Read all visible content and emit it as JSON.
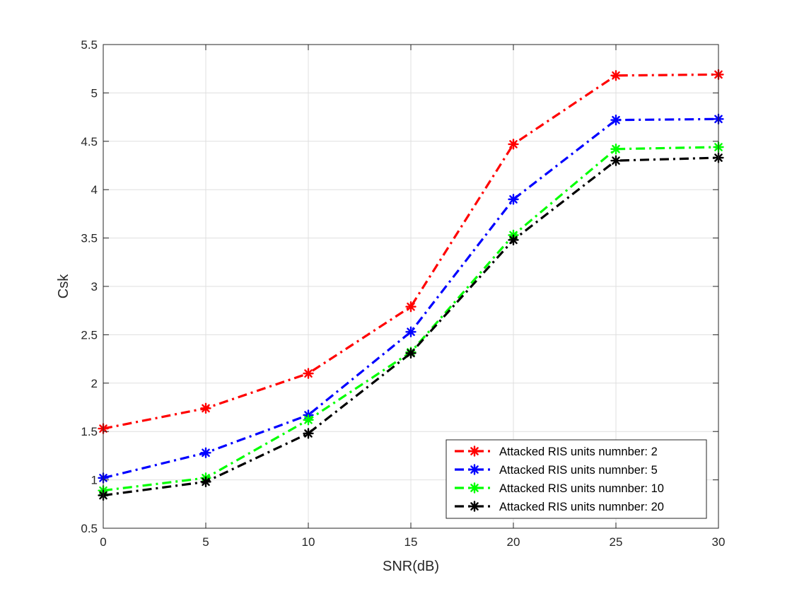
{
  "chart_data": {
    "type": "line",
    "title": "",
    "xlabel": "SNR(dB)",
    "ylabel": "Csk",
    "x": [
      0,
      5,
      10,
      15,
      20,
      25,
      30
    ],
    "xlim": [
      0,
      30
    ],
    "ylim": [
      0.5,
      5.5
    ],
    "xticks": [
      0,
      5,
      10,
      15,
      20,
      25,
      30
    ],
    "yticks": [
      0.5,
      1,
      1.5,
      2,
      2.5,
      3,
      3.5,
      4,
      4.5,
      5,
      5.5
    ],
    "xtick_labels": [
      "0",
      "5",
      "10",
      "15",
      "20",
      "25",
      "30"
    ],
    "ytick_labels": [
      "0.5",
      "1",
      "1.5",
      "2",
      "2.5",
      "3",
      "3.5",
      "4",
      "4.5",
      "5",
      "5.5"
    ],
    "grid": true,
    "legend_position": "bottom-right",
    "series": [
      {
        "name": "Attacked RIS units numnber: 2",
        "color": "#ff0000",
        "dash": "dash-dot",
        "marker": "asterisk",
        "values": [
          1.53,
          1.74,
          2.1,
          2.79,
          4.47,
          5.18,
          5.19
        ]
      },
      {
        "name": "Attacked RIS units numnber: 5",
        "color": "#0000ff",
        "dash": "dash-dot",
        "marker": "asterisk",
        "values": [
          1.02,
          1.28,
          1.67,
          2.53,
          3.9,
          4.72,
          4.73
        ]
      },
      {
        "name": "Attacked RIS units numnber: 10",
        "color": "#00ff00",
        "dash": "dash-dot",
        "marker": "asterisk",
        "values": [
          0.89,
          1.02,
          1.62,
          2.32,
          3.53,
          4.42,
          4.44
        ]
      },
      {
        "name": "Attacked RIS units numnber: 20",
        "color": "#000000",
        "dash": "dash-dot",
        "marker": "asterisk",
        "values": [
          0.84,
          0.98,
          1.48,
          2.31,
          3.48,
          4.3,
          4.33
        ]
      }
    ]
  }
}
